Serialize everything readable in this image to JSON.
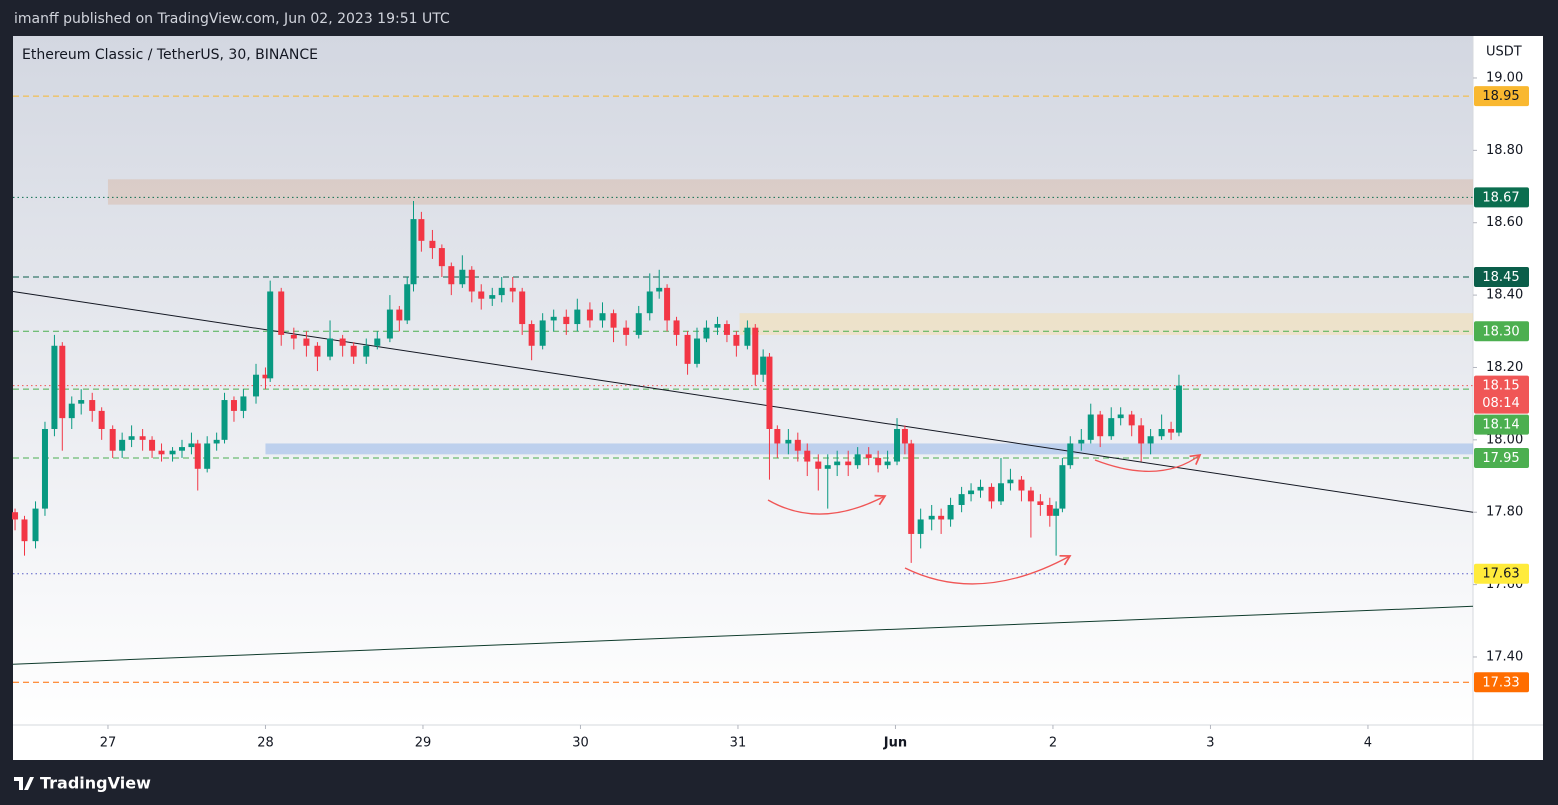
{
  "header": "imanff published on TradingView.com, Jun 02, 2023 19:51 UTC",
  "footer": "TradingView",
  "chart_data": {
    "type": "candlestick",
    "title": "Ethereum Classic / TetherUS, 30, BINANCE",
    "currency": "USDT",
    "xlim": [
      -0.603,
      8.667
    ],
    "ylim": [
      17.212,
      19.116
    ],
    "xticks": [
      {
        "value": 0,
        "label": "27"
      },
      {
        "value": 1,
        "label": "28"
      },
      {
        "value": 2,
        "label": "29"
      },
      {
        "value": 3,
        "label": "30"
      },
      {
        "value": 4,
        "label": "31"
      },
      {
        "value": 5,
        "label": "Jun"
      },
      {
        "value": 6,
        "label": "2"
      },
      {
        "value": 7,
        "label": "3"
      },
      {
        "value": 8,
        "label": "4"
      }
    ],
    "yticks": [
      {
        "value": 17.4,
        "label": "17.40"
      },
      {
        "value": 17.6,
        "label": "17.60"
      },
      {
        "value": 17.8,
        "label": "17.80"
      },
      {
        "value": 18,
        "label": "18.00"
      },
      {
        "value": 18.2,
        "label": "18.20"
      },
      {
        "value": 18.4,
        "label": "18.40"
      },
      {
        "value": 18.6,
        "label": "18.60"
      },
      {
        "value": 18.8,
        "label": "18.80"
      },
      {
        "value": 19,
        "label": "19.00"
      }
    ],
    "grid": false,
    "up_color": "#089981",
    "down_color": "#f23645",
    "x": [
      -0.59,
      -0.53,
      -0.46,
      -0.4,
      -0.34,
      -0.29,
      -0.23,
      -0.17,
      -0.1,
      -0.04,
      0.03,
      0.09,
      0.15,
      0.22,
      0.28,
      0.34,
      0.41,
      0.47,
      0.53,
      0.57,
      0.63,
      0.69,
      0.74,
      0.8,
      0.86,
      0.94,
      1.0,
      1.03,
      1.1,
      1.18,
      1.26,
      1.33,
      1.41,
      1.49,
      1.56,
      1.64,
      1.71,
      1.79,
      1.85,
      1.9,
      1.94,
      1.99,
      2.06,
      2.12,
      2.18,
      2.25,
      2.31,
      2.37,
      2.44,
      2.5,
      2.57,
      2.63,
      2.69,
      2.76,
      2.83,
      2.91,
      2.98,
      3.06,
      3.14,
      3.21,
      3.29,
      3.37,
      3.44,
      3.5,
      3.55,
      3.61,
      3.68,
      3.74,
      3.8,
      3.87,
      3.93,
      3.99,
      4.06,
      4.11,
      4.16,
      4.2,
      4.25,
      4.32,
      4.38,
      4.44,
      4.51,
      4.57,
      4.63,
      4.7,
      4.76,
      4.83,
      4.89,
      4.95,
      5.01,
      5.06,
      5.1,
      5.16,
      5.23,
      5.29,
      5.35,
      5.42,
      5.48,
      5.54,
      5.61,
      5.67,
      5.73,
      5.8,
      5.86,
      5.92,
      5.98,
      6.02,
      6.06,
      6.11,
      6.18,
      6.24,
      6.3,
      6.37,
      6.43,
      6.5,
      6.56,
      6.62,
      6.69,
      6.75,
      6.8
    ],
    "open": [
      17.8,
      17.78,
      17.72,
      17.81,
      18.03,
      18.26,
      18.06,
      18.1,
      18.11,
      18.08,
      18.03,
      17.97,
      18.0,
      18.01,
      18.0,
      17.97,
      17.96,
      17.97,
      17.98,
      17.99,
      17.92,
      17.99,
      18.0,
      18.11,
      18.08,
      18.12,
      18.18,
      18.17,
      18.41,
      18.29,
      18.28,
      18.26,
      18.23,
      18.28,
      18.26,
      18.23,
      18.26,
      18.28,
      18.36,
      18.33,
      18.43,
      18.61,
      18.55,
      18.53,
      18.48,
      18.43,
      18.47,
      18.41,
      18.39,
      18.4,
      18.42,
      18.41,
      18.32,
      18.26,
      18.33,
      18.34,
      18.32,
      18.36,
      18.33,
      18.35,
      18.31,
      18.29,
      18.35,
      18.41,
      18.42,
      18.33,
      18.29,
      18.21,
      18.28,
      18.31,
      18.32,
      18.29,
      18.26,
      18.31,
      18.18,
      18.23,
      18.03,
      17.99,
      18.0,
      17.97,
      17.94,
      17.92,
      17.93,
      17.94,
      17.93,
      17.96,
      17.95,
      17.93,
      17.94,
      18.03,
      17.99,
      17.74,
      17.78,
      17.79,
      17.78,
      17.82,
      17.85,
      17.86,
      17.87,
      17.83,
      17.88,
      17.89,
      17.86,
      17.83,
      17.82,
      17.79,
      17.81,
      17.93,
      17.99,
      18.0,
      18.07,
      18.01,
      18.06,
      18.07,
      18.04,
      17.99,
      18.01,
      18.03,
      18.02
    ],
    "high": [
      17.81,
      17.79,
      17.83,
      18.05,
      18.29,
      18.27,
      18.12,
      18.14,
      18.13,
      18.09,
      18.04,
      18.02,
      18.04,
      18.03,
      18.01,
      17.99,
      17.98,
      18.0,
      18.02,
      18.0,
      18.01,
      18.02,
      18.13,
      18.12,
      18.14,
      18.21,
      18.2,
      18.44,
      18.42,
      18.31,
      18.3,
      18.27,
      18.33,
      18.29,
      18.27,
      18.28,
      18.3,
      18.4,
      18.37,
      18.45,
      18.66,
      18.63,
      18.58,
      18.54,
      18.49,
      18.51,
      18.48,
      18.43,
      18.42,
      18.45,
      18.45,
      18.42,
      18.33,
      18.35,
      18.36,
      18.36,
      18.39,
      18.38,
      18.38,
      18.36,
      18.33,
      18.37,
      18.46,
      18.47,
      18.43,
      18.34,
      18.3,
      18.31,
      18.33,
      18.34,
      18.33,
      18.3,
      18.33,
      18.32,
      18.25,
      18.24,
      18.04,
      18.03,
      18.02,
      17.99,
      17.96,
      17.96,
      17.97,
      17.97,
      17.98,
      17.98,
      17.97,
      17.97,
      18.06,
      18.04,
      18.0,
      17.81,
      17.82,
      17.81,
      17.84,
      17.87,
      17.88,
      17.89,
      17.88,
      17.95,
      17.92,
      17.9,
      17.87,
      17.85,
      17.84,
      17.83,
      17.95,
      18.01,
      18.03,
      18.1,
      18.08,
      18.09,
      18.09,
      18.08,
      18.06,
      18.03,
      18.07,
      18.05,
      18.18
    ],
    "low": [
      17.75,
      17.68,
      17.7,
      17.79,
      18.01,
      17.97,
      18.03,
      18.07,
      18.05,
      18.0,
      17.95,
      17.95,
      17.98,
      17.97,
      17.95,
      17.94,
      17.94,
      17.95,
      17.96,
      17.86,
      17.91,
      17.97,
      17.99,
      18.05,
      18.06,
      18.1,
      18.14,
      18.16,
      18.26,
      18.25,
      18.23,
      18.19,
      18.22,
      18.23,
      18.21,
      18.21,
      18.25,
      18.27,
      18.3,
      18.32,
      18.41,
      18.52,
      18.5,
      18.45,
      18.4,
      18.42,
      18.38,
      18.36,
      18.37,
      18.38,
      18.38,
      18.29,
      18.22,
      18.25,
      18.3,
      18.29,
      18.3,
      18.31,
      18.31,
      18.27,
      18.26,
      18.28,
      18.33,
      18.39,
      18.3,
      18.26,
      18.18,
      18.2,
      18.27,
      18.29,
      18.27,
      18.23,
      18.25,
      18.15,
      18.16,
      17.89,
      17.95,
      17.96,
      17.94,
      17.9,
      17.86,
      17.81,
      17.9,
      17.9,
      17.92,
      17.93,
      17.91,
      17.92,
      17.93,
      17.96,
      17.66,
      17.7,
      17.75,
      17.74,
      17.76,
      17.8,
      17.83,
      17.84,
      17.81,
      17.82,
      17.86,
      17.83,
      17.73,
      17.79,
      17.76,
      17.68,
      17.8,
      17.92,
      17.97,
      17.99,
      17.98,
      18.0,
      18.04,
      18.01,
      17.94,
      17.96,
      18.0,
      18.0,
      18.01
    ],
    "close": [
      17.78,
      17.72,
      17.81,
      18.03,
      18.26,
      18.06,
      18.1,
      18.11,
      18.08,
      18.03,
      17.97,
      18.0,
      18.01,
      18.0,
      17.97,
      17.96,
      17.97,
      17.98,
      17.99,
      17.92,
      17.99,
      18.0,
      18.11,
      18.08,
      18.12,
      18.18,
      18.17,
      18.41,
      18.29,
      18.28,
      18.26,
      18.23,
      18.28,
      18.26,
      18.23,
      18.26,
      18.28,
      18.36,
      18.33,
      18.43,
      18.61,
      18.55,
      18.53,
      18.48,
      18.43,
      18.47,
      18.41,
      18.39,
      18.4,
      18.42,
      18.41,
      18.32,
      18.26,
      18.33,
      18.34,
      18.32,
      18.36,
      18.33,
      18.35,
      18.31,
      18.29,
      18.35,
      18.41,
      18.42,
      18.33,
      18.29,
      18.21,
      18.28,
      18.31,
      18.32,
      18.29,
      18.26,
      18.31,
      18.18,
      18.23,
      18.03,
      17.99,
      18.0,
      17.97,
      17.94,
      17.92,
      17.93,
      17.94,
      17.93,
      17.96,
      17.95,
      17.93,
      17.94,
      18.03,
      17.99,
      17.74,
      17.78,
      17.79,
      17.78,
      17.82,
      17.85,
      17.86,
      17.87,
      17.83,
      17.88,
      17.89,
      17.86,
      17.83,
      17.82,
      17.79,
      17.81,
      17.93,
      17.99,
      18.0,
      18.07,
      18.01,
      18.06,
      18.07,
      18.04,
      17.99,
      18.01,
      18.03,
      18.02,
      18.15
    ],
    "zones": [
      {
        "x": [
          0,
          8.667
        ],
        "y": [
          18.65,
          18.72
        ],
        "color": "rgba(214,170,140,0.35)"
      },
      {
        "x": [
          4.01,
          8.667
        ],
        "y": [
          18.29,
          18.35
        ],
        "color": "rgba(246,220,160,0.45)"
      },
      {
        "x": [
          1.0,
          8.667
        ],
        "y": [
          17.96,
          17.99
        ],
        "color": "rgba(130,170,230,0.45)"
      }
    ],
    "trend_lines": [
      {
        "x": [
          -0.603,
          8.667
        ],
        "y": [
          18.41,
          17.8
        ],
        "color": "#131722"
      },
      {
        "x": [
          -0.603,
          8.667
        ],
        "y": [
          17.38,
          17.54
        ],
        "color": "#0f3b2c"
      }
    ],
    "price_lines": [
      {
        "value": 18.95,
        "label": "18.95",
        "color": "#f9b830",
        "text_color": "#131722",
        "style": "dashed"
      },
      {
        "value": 18.67,
        "label": "18.67",
        "color": "#0b6e4f",
        "text_color": "#ffffff",
        "style": "dotted"
      },
      {
        "value": 18.45,
        "label": "18.45",
        "color": "#0b5e4a",
        "text_color": "#ffffff",
        "style": "dashed"
      },
      {
        "value": 18.3,
        "label": "18.30",
        "color": "#4caf50",
        "text_color": "#ffffff",
        "style": "dashed"
      },
      {
        "value": 18.15,
        "label": "18.15",
        "countdown": "08:14",
        "color": "#f05656",
        "text_color": "#ffffff",
        "style": "dotted"
      },
      {
        "value": 18.14,
        "label": "18.14",
        "color": "#4caf50",
        "text_color": "#ffffff",
        "style": "dashed"
      },
      {
        "value": 17.95,
        "label": "17.95",
        "color": "#4caf50",
        "text_color": "#ffffff",
        "style": "dashed"
      },
      {
        "value": 17.63,
        "label": "17.63",
        "color": "#ffeb3b",
        "line_color": "#5b5fc7",
        "text_color": "#131722",
        "style": "dotted"
      },
      {
        "value": 17.33,
        "label": "17.33",
        "color": "#ff6d00",
        "text_color": "#ffffff",
        "style": "dashed"
      }
    ]
  }
}
